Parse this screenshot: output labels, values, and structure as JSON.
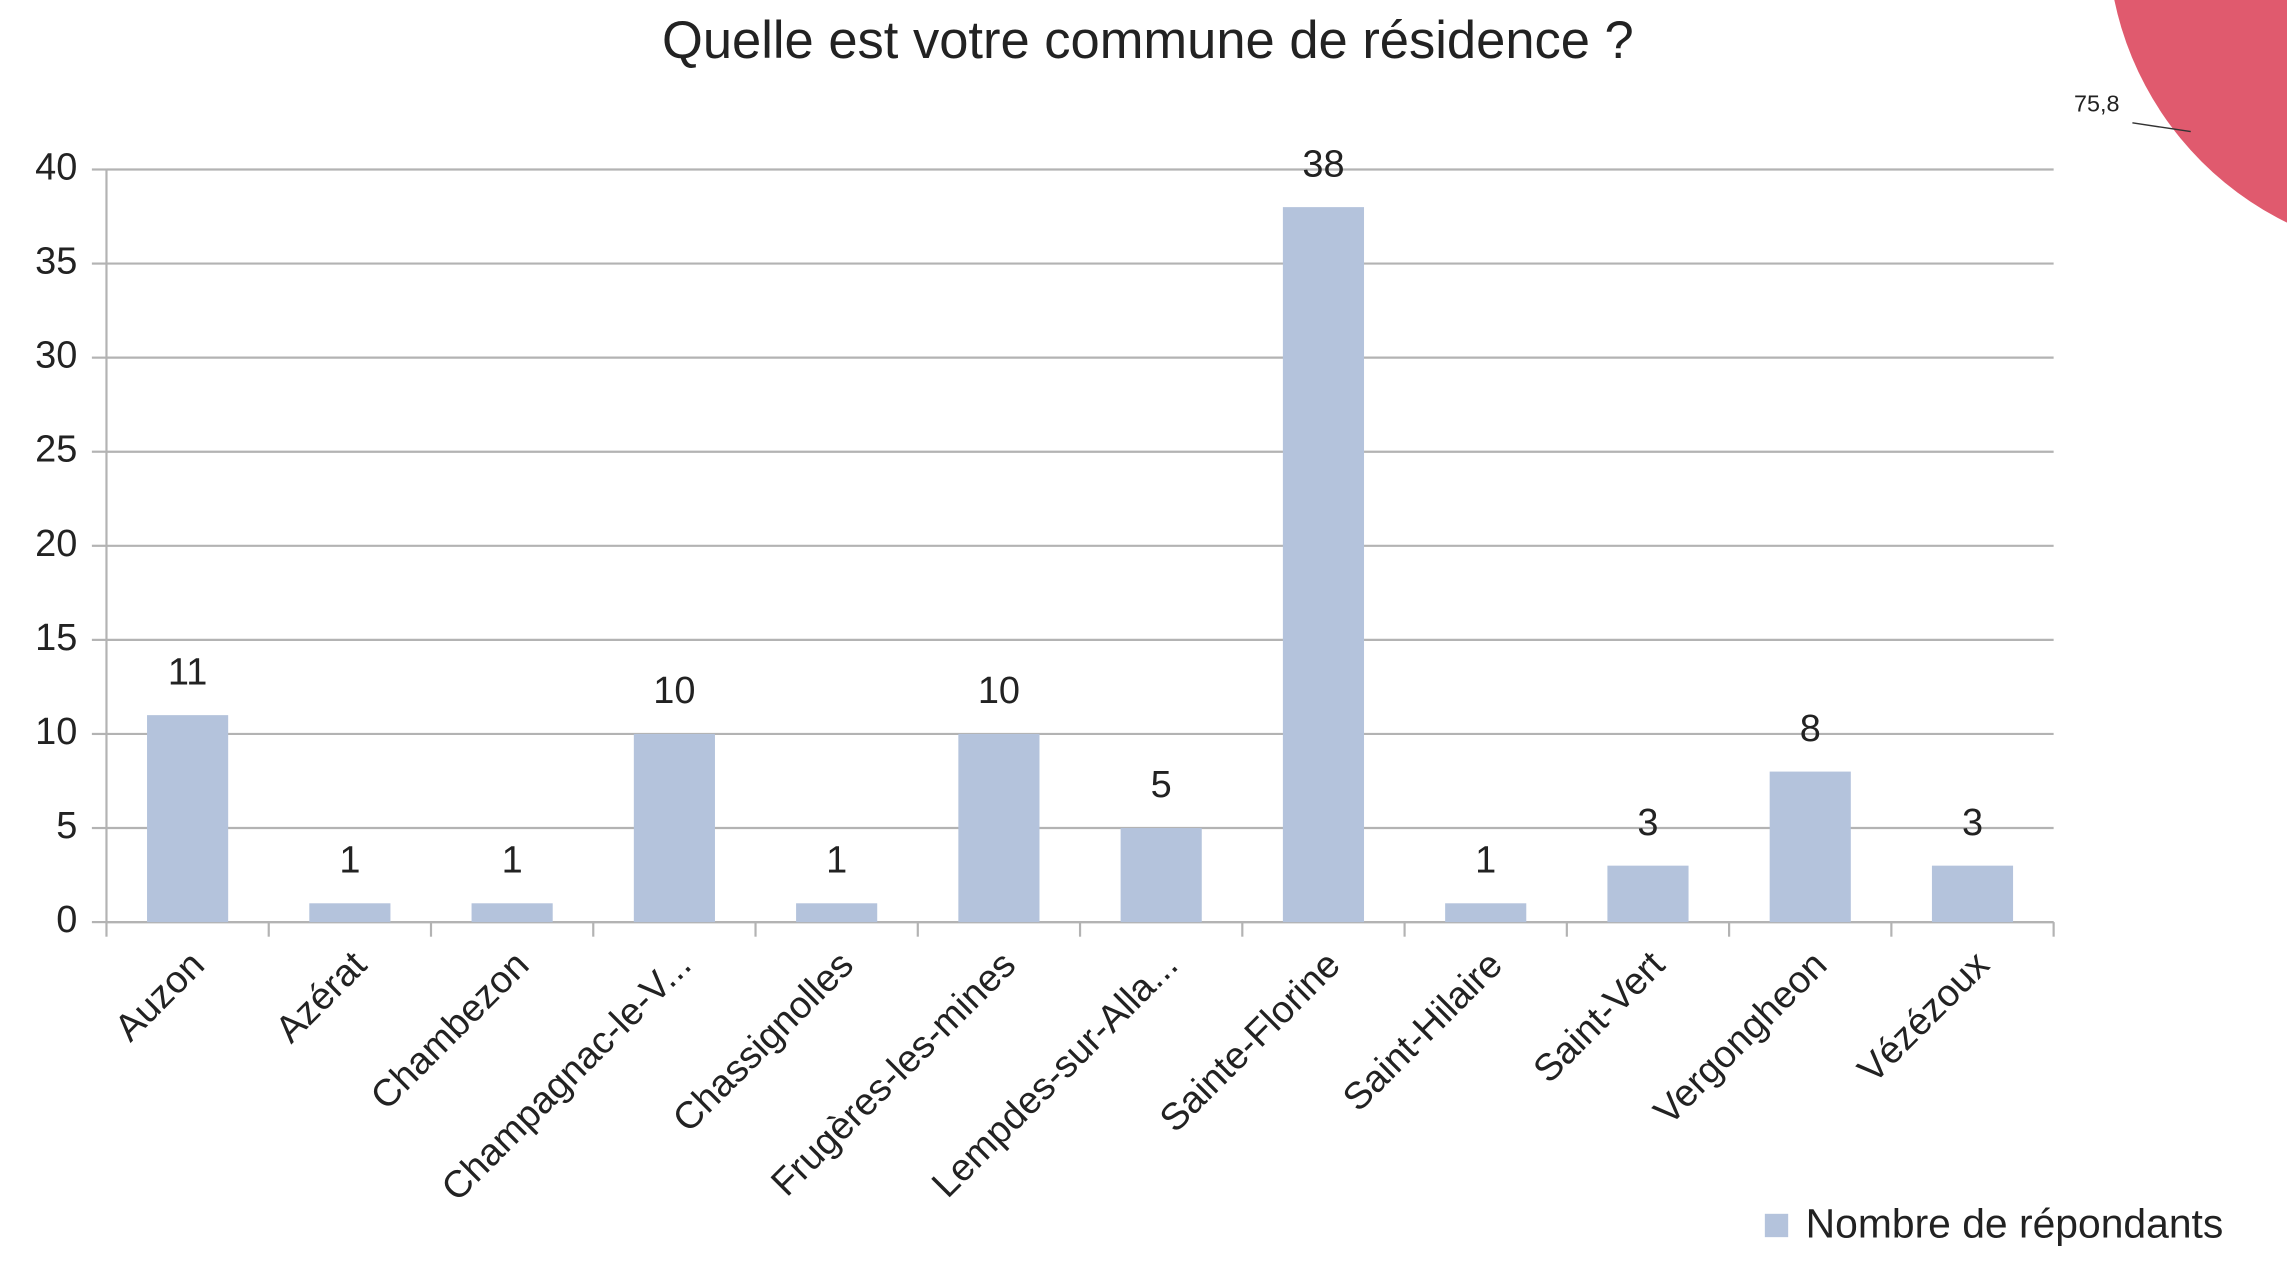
{
  "chart_data": [
    {
      "type": "bar",
      "title": "Quelle est votre commune de résidence ?",
      "categories": [
        "Auzon",
        "Azérat",
        "Chambezon",
        "Champagnac-le-V...",
        "Chassignolles",
        "Frugères-les-mines",
        "Lempdes-sur-Alla...",
        "Sainte-Florine",
        "Saint-Hilaire",
        "Saint-Vert",
        "Vergongheon",
        "Vézézoux"
      ],
      "series": [
        {
          "name": "Nombre de répondants",
          "color": "#b4c3dc",
          "values": [
            11,
            1,
            1,
            10,
            1,
            10,
            5,
            38,
            1,
            3,
            8,
            3
          ]
        }
      ],
      "ylim": [
        0,
        40
      ],
      "yticks": [
        0,
        5,
        10,
        15,
        20,
        25,
        30,
        35,
        40
      ],
      "grid": true,
      "legend": "bottom-right"
    },
    {
      "type": "pie",
      "values": [
        75.8
      ],
      "value_labels": [
        "75,8"
      ],
      "color": "#e05a6e"
    }
  ]
}
